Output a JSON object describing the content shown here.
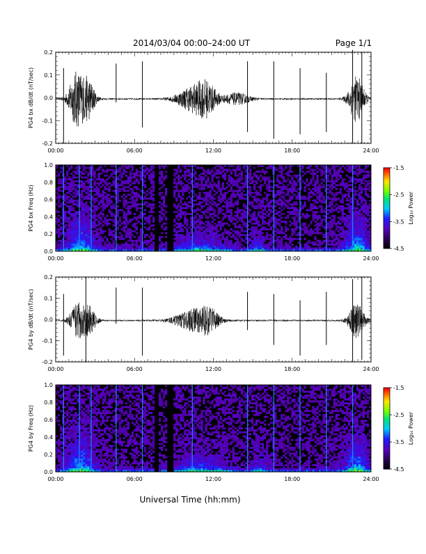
{
  "header": {
    "title": "2014/03/04  00:00–24:00 UT",
    "page": "Page 1/1"
  },
  "xlabel": "Universal Time (hh:mm)",
  "chart_data": [
    {
      "type": "line",
      "ylabel": "PG4 bx dB/dt (nT/sec)",
      "ylim": [
        -0.2,
        0.2
      ],
      "yticks": [
        "0.2",
        "0.1",
        "0.0",
        "-0.1",
        "-0.2"
      ],
      "xlim": [
        0,
        24
      ],
      "xticks": [
        "00:00",
        "06:00",
        "12:00",
        "18:00",
        "24:00"
      ],
      "series_color": "#000000",
      "bursts": [
        {
          "t": 1.6,
          "amp": 0.12,
          "width": 0.6
        },
        {
          "t": 2.5,
          "amp": 0.08,
          "width": 0.5
        },
        {
          "t": 10.4,
          "amp": 0.05,
          "width": 1.2
        },
        {
          "t": 11.5,
          "amp": 0.06,
          "width": 0.8
        },
        {
          "t": 13.8,
          "amp": 0.025,
          "width": 1.0
        },
        {
          "t": 22.9,
          "amp": 0.1,
          "width": 0.6
        }
      ],
      "spikes": [
        {
          "t": 0.6,
          "top": 0.13,
          "bottom": -0.2
        },
        {
          "t": 4.6,
          "top": 0.15,
          "bottom": -0.02
        },
        {
          "t": 6.6,
          "top": 0.16,
          "bottom": -0.13
        },
        {
          "t": 14.6,
          "top": 0.16,
          "bottom": -0.15
        },
        {
          "t": 16.6,
          "top": 0.16,
          "bottom": -0.18
        },
        {
          "t": 18.6,
          "top": 0.13,
          "bottom": -0.16
        },
        {
          "t": 20.6,
          "top": 0.11,
          "bottom": -0.15
        },
        {
          "t": 22.6,
          "top": 0.21,
          "bottom": -0.2
        },
        {
          "t": 23.3,
          "top": 0.2,
          "bottom": -0.2
        }
      ]
    },
    {
      "type": "heatmap",
      "ylabel": "PG4 bx Freq (Hz)",
      "ylim": [
        0.0,
        1.0
      ],
      "yticks": [
        "1.0",
        "0.8",
        "0.6",
        "0.4",
        "0.2",
        "0.0"
      ],
      "xlim": [
        0,
        24
      ],
      "xticks": [
        "00:00",
        "06:00",
        "12:00",
        "18:00",
        "24:00"
      ],
      "colorbar": {
        "label": "Log₁₀ Power",
        "min": -4.5,
        "max": -1.5,
        "ticks": [
          "-1.5",
          "-2.5",
          "-3.5",
          "-4.5"
        ]
      },
      "gaps": [
        [
          7.6,
          7.9
        ],
        [
          8.5,
          9.0
        ]
      ],
      "lines": [
        0.6,
        1.8,
        2.7,
        4.6,
        6.6,
        10.4,
        14.6,
        16.6,
        18.6,
        20.6,
        22.6
      ],
      "bursts": [
        {
          "t": 1.9,
          "power": 3.6,
          "width": 1.0,
          "fmax": 0.55
        },
        {
          "t": 11.0,
          "power": 2.5,
          "width": 2.0,
          "fmax": 0.3
        },
        {
          "t": 15.4,
          "power": 1.8,
          "width": 0.6,
          "fmax": 0.4
        },
        {
          "t": 22.9,
          "power": 3.5,
          "width": 0.9,
          "fmax": 0.55
        }
      ]
    },
    {
      "type": "line",
      "ylabel": "PG4 by dB/dt (nT/sec)",
      "ylim": [
        -0.2,
        0.2
      ],
      "yticks": [
        "0.2",
        "0.1",
        "0.0",
        "-0.1",
        "-0.2"
      ],
      "xlim": [
        0,
        24
      ],
      "xticks": [
        "00:00",
        "06:00",
        "12:00",
        "18:00",
        "24:00"
      ],
      "series_color": "#000000",
      "bursts": [
        {
          "t": 1.7,
          "amp": 0.08,
          "width": 0.6
        },
        {
          "t": 2.6,
          "amp": 0.06,
          "width": 0.5
        },
        {
          "t": 10.5,
          "amp": 0.05,
          "width": 1.4
        },
        {
          "t": 11.7,
          "amp": 0.04,
          "width": 0.8
        },
        {
          "t": 22.9,
          "amp": 0.08,
          "width": 0.6
        }
      ],
      "spikes": [
        {
          "t": 0.6,
          "top": 0.12,
          "bottom": -0.17
        },
        {
          "t": 2.3,
          "top": 0.2,
          "bottom": -0.2
        },
        {
          "t": 4.6,
          "top": 0.15,
          "bottom": -0.02
        },
        {
          "t": 6.6,
          "top": 0.15,
          "bottom": -0.17
        },
        {
          "t": 14.6,
          "top": 0.13,
          "bottom": -0.05
        },
        {
          "t": 16.6,
          "top": 0.12,
          "bottom": -0.12
        },
        {
          "t": 18.6,
          "top": 0.09,
          "bottom": -0.17
        },
        {
          "t": 20.6,
          "top": 0.13,
          "bottom": -0.12
        },
        {
          "t": 22.6,
          "top": 0.19,
          "bottom": -0.2
        },
        {
          "t": 23.3,
          "top": 0.2,
          "bottom": -0.19
        }
      ]
    },
    {
      "type": "heatmap",
      "ylabel": "PG4 by Freq (Hz)",
      "ylim": [
        0.0,
        1.0
      ],
      "yticks": [
        "1.0",
        "0.8",
        "0.6",
        "0.4",
        "0.2",
        "0.0"
      ],
      "xlim": [
        0,
        24
      ],
      "xticks": [
        "00:00",
        "06:00",
        "12:00",
        "18:00",
        "24:00"
      ],
      "colorbar": {
        "label": "Log₁₀ Power",
        "min": -4.5,
        "max": -1.5,
        "ticks": [
          "-1.5",
          "-2.5",
          "-3.5",
          "-4.5"
        ]
      },
      "gaps": [
        [
          7.6,
          7.9
        ],
        [
          8.5,
          9.0
        ]
      ],
      "lines": [
        0.6,
        1.8,
        2.7,
        4.6,
        6.6,
        10.4,
        14.6,
        16.6,
        18.6,
        20.6,
        22.6
      ],
      "bursts": [
        {
          "t": 1.9,
          "power": 3.6,
          "width": 1.0,
          "fmax": 0.6
        },
        {
          "t": 11.0,
          "power": 2.5,
          "width": 2.0,
          "fmax": 0.3
        },
        {
          "t": 15.5,
          "power": 1.8,
          "width": 0.6,
          "fmax": 0.35
        },
        {
          "t": 22.9,
          "power": 3.4,
          "width": 0.9,
          "fmax": 0.55
        }
      ]
    }
  ]
}
